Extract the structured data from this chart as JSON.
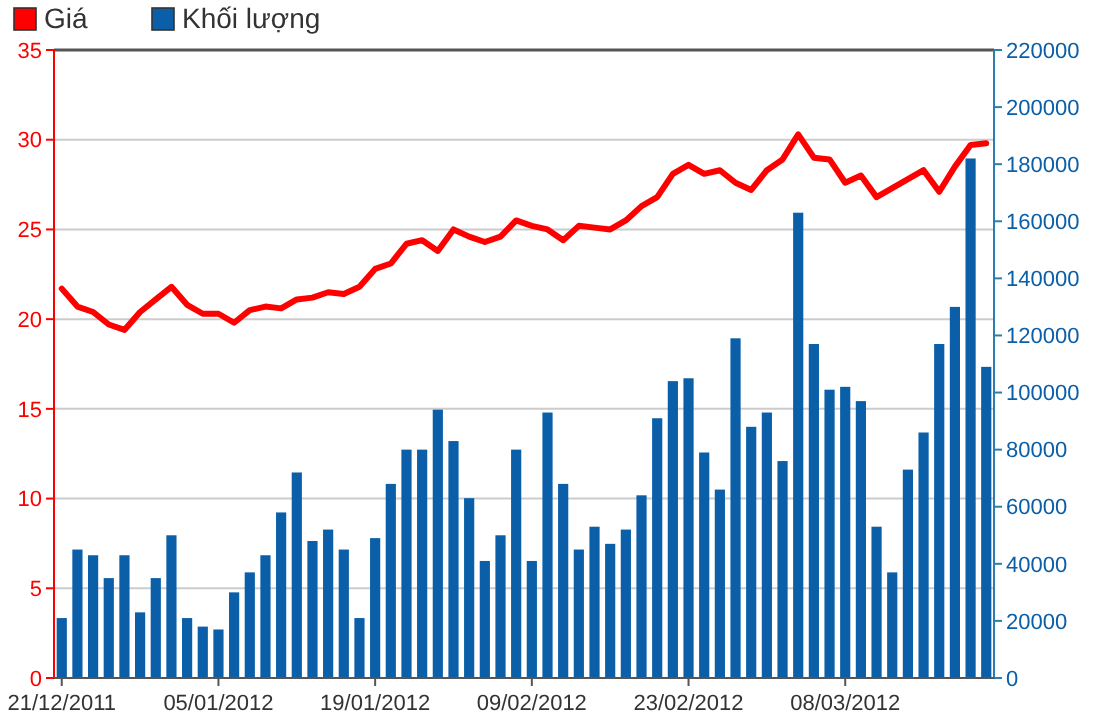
{
  "chart_data": {
    "type": "bar",
    "categories": [
      "21/12/2011",
      null,
      null,
      null,
      null,
      null,
      null,
      null,
      null,
      null,
      "05/01/2012",
      null,
      null,
      null,
      null,
      null,
      null,
      null,
      null,
      null,
      "19/01/2012",
      null,
      null,
      null,
      null,
      null,
      null,
      null,
      null,
      null,
      "09/02/2012",
      null,
      null,
      null,
      null,
      null,
      null,
      null,
      null,
      null,
      "23/02/2012",
      null,
      null,
      null,
      null,
      null,
      null,
      null,
      null,
      null,
      "08/03/2012",
      null,
      null,
      null,
      null,
      null,
      null,
      null,
      null,
      null
    ],
    "series": [
      {
        "name": "Giá",
        "type": "line",
        "color": "#ff0000",
        "values": [
          21.7,
          20.7,
          20.4,
          19.7,
          19.4,
          20.4,
          21.1,
          21.8,
          20.8,
          20.3,
          20.3,
          19.8,
          20.5,
          20.7,
          20.6,
          21.1,
          21.2,
          21.5,
          21.4,
          21.8,
          22.8,
          23.1,
          24.2,
          24.4,
          23.8,
          25.0,
          24.6,
          24.3,
          24.6,
          25.5,
          25.2,
          25.0,
          24.4,
          25.2,
          25.1,
          25.0,
          25.5,
          26.3,
          26.8,
          28.1,
          28.6,
          28.1,
          28.3,
          27.6,
          27.2,
          28.3,
          28.9,
          30.3,
          29.0,
          28.9,
          27.6,
          28.0,
          26.8,
          27.3,
          27.8,
          28.3,
          27.1,
          28.5,
          29.7,
          29.8
        ]
      },
      {
        "name": "Khối lượng",
        "axis": "y2",
        "color": "#0a5fa8",
        "values": [
          21000,
          45000,
          43000,
          35000,
          43000,
          23000,
          35000,
          50000,
          21000,
          18000,
          17000,
          30000,
          37000,
          43000,
          58000,
          72000,
          48000,
          52000,
          45000,
          21000,
          49000,
          68000,
          80000,
          80000,
          94000,
          83000,
          63000,
          41000,
          50000,
          80000,
          41000,
          93000,
          68000,
          45000,
          53000,
          47000,
          52000,
          64000,
          91000,
          104000,
          105000,
          79000,
          66000,
          119000,
          88000,
          93000,
          76000,
          163000,
          117000,
          101000,
          102000,
          97000,
          53000,
          37000,
          73000,
          86000,
          117000,
          130000,
          182000,
          109000
        ]
      }
    ],
    "ylim": [
      0,
      35
    ],
    "yticks": [
      0,
      5,
      10,
      15,
      20,
      25,
      30,
      35
    ],
    "y2lim": [
      0,
      220000
    ],
    "y2ticks": [
      0,
      20000,
      40000,
      60000,
      80000,
      100000,
      120000,
      140000,
      160000,
      180000,
      200000,
      220000
    ],
    "grid": "y",
    "legend": "top left",
    "marker": "none"
  }
}
